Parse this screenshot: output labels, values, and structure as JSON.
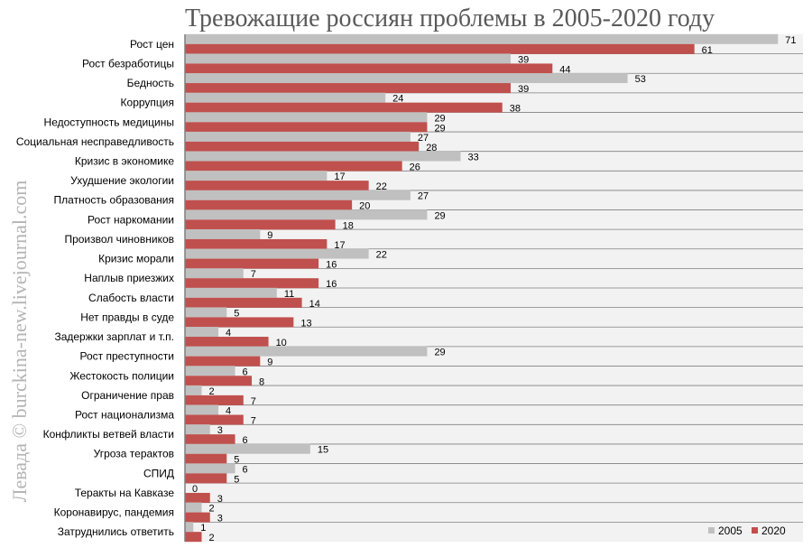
{
  "watermark": "Левада © burckina-new.livejournal.com",
  "chart_data": {
    "type": "bar",
    "orientation": "horizontal",
    "title": "Тревожащие россиян проблемы в 2005-2020 году",
    "categories": [
      "Рост цен",
      "Рост безработицы",
      "Бедность",
      "Коррупция",
      "Недоступность медицины",
      "Социальная несправедливость",
      "Кризис в экономике",
      "Ухудшение экологии",
      "Платность образования",
      "Рост наркомании",
      "Произвол чиновников",
      "Кризис морали",
      "Наплыв приезжих",
      "Слабость власти",
      "Нет правды в суде",
      "Задержки зарплат и т.п.",
      "Рост преступности",
      "Жестокость полиции",
      "Ограничение прав",
      "Рост национализма",
      "Конфликты ветвей власти",
      "Угроза терактов",
      "СПИД",
      "Теракты на Кавказе",
      "Коронавирус, пандемия",
      "Затруднились ответить"
    ],
    "series": [
      {
        "name": "2005",
        "color": "#c0c0c0",
        "values": [
          71,
          39,
          53,
          24,
          29,
          27,
          33,
          17,
          27,
          29,
          9,
          22,
          7,
          11,
          5,
          4,
          29,
          6,
          2,
          4,
          3,
          15,
          6,
          0,
          2,
          1
        ]
      },
      {
        "name": "2020",
        "color": "#c0504d",
        "values": [
          61,
          44,
          39,
          38,
          29,
          28,
          26,
          22,
          20,
          18,
          17,
          16,
          16,
          14,
          13,
          10,
          9,
          8,
          7,
          7,
          6,
          5,
          5,
          3,
          3,
          2
        ]
      }
    ],
    "xlim": [
      0,
      74
    ],
    "grid": false,
    "legend": "bottom-right",
    "background_color": "#f2f2f2",
    "row_divider_color": "#7f7f7f"
  }
}
